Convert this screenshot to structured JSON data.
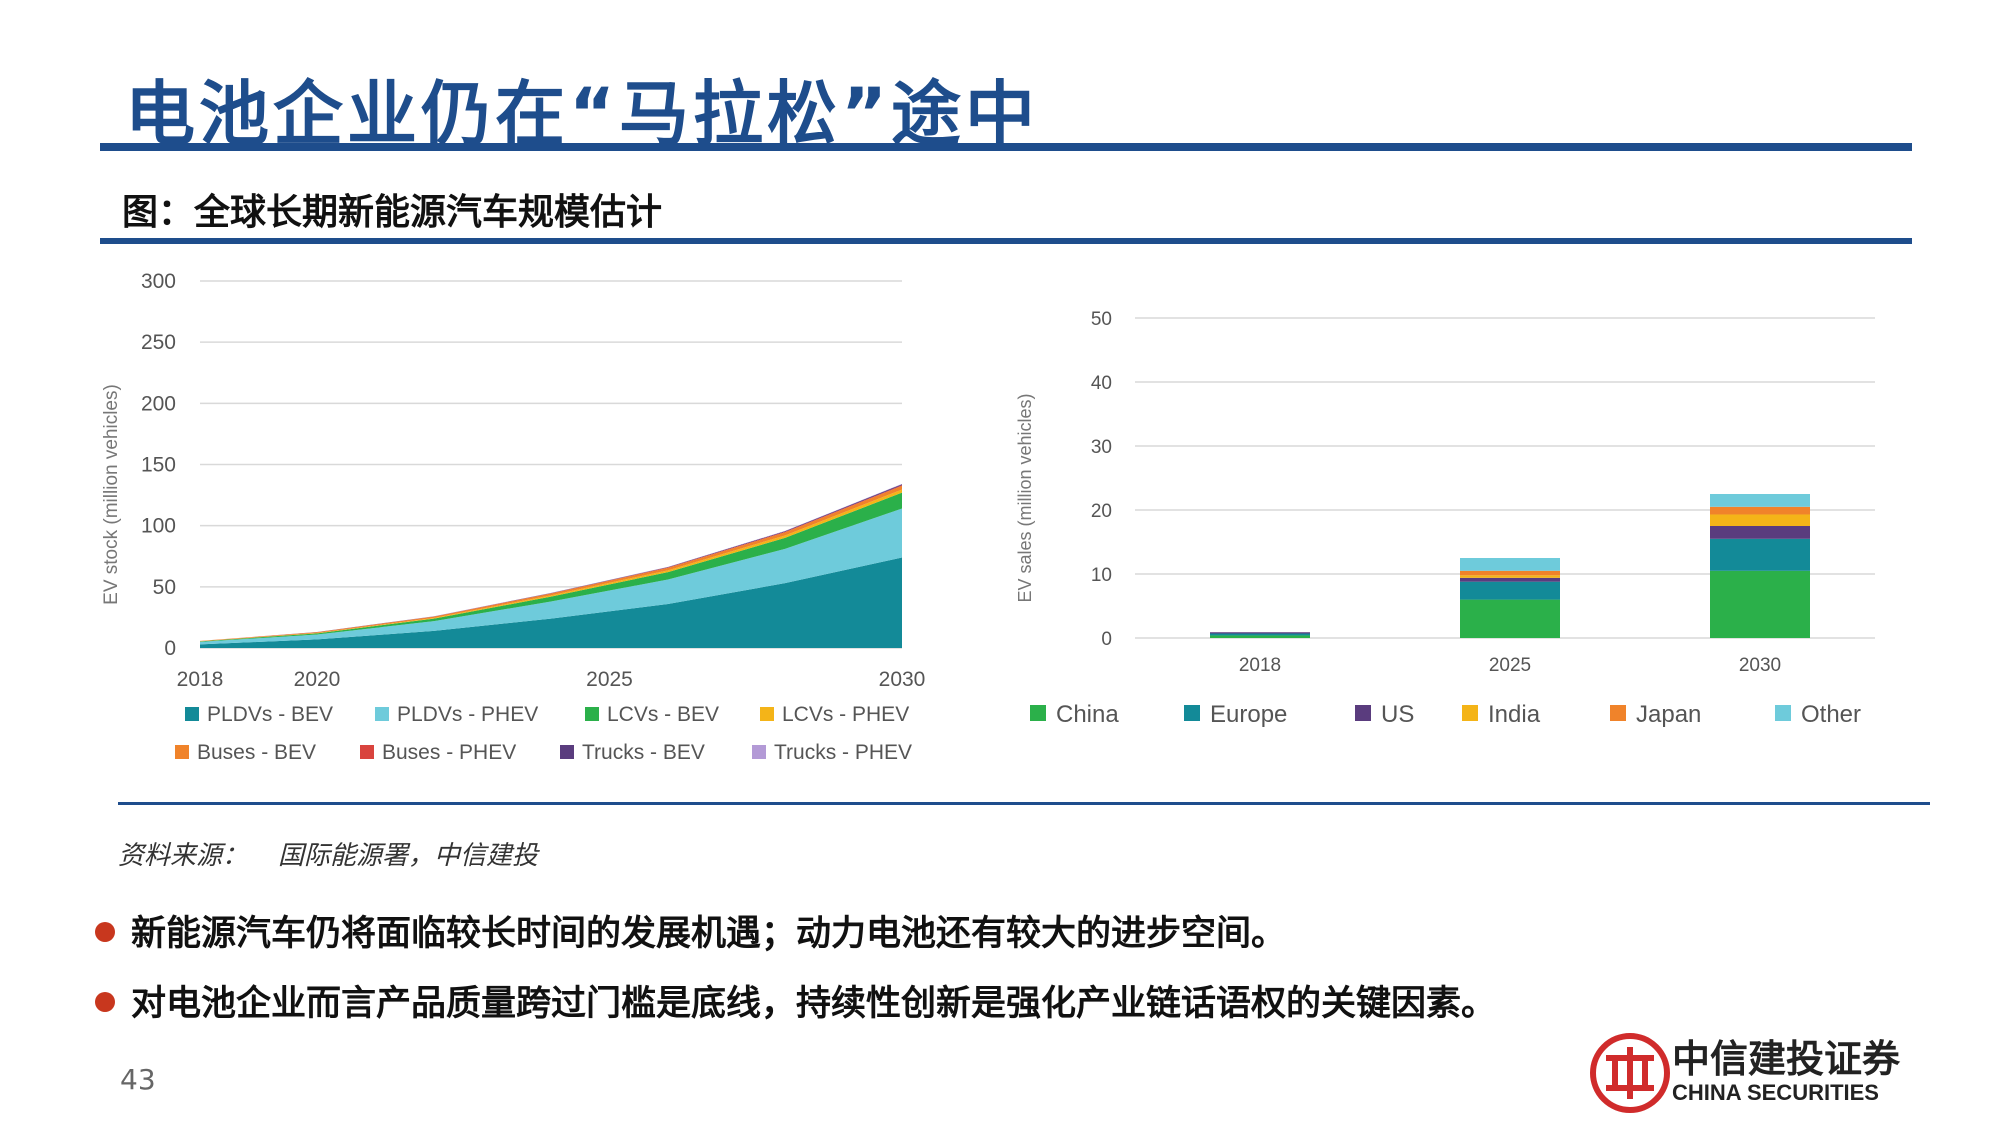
{
  "title": "电池企业仍在“马拉松”途中",
  "subtitle": "图：全球长期新能源汽车规模估计",
  "source": {
    "label": "资料来源：",
    "text": "国际能源署，中信建投"
  },
  "bullets": [
    "新能源汽车仍将面临较长时间的发展机遇；动力电池还有较大的进步空间。",
    "对电池企业而言产品质量跨过门槛是底线，持续性创新是强化产业链话语权的关键因素。"
  ],
  "page_number": "43",
  "logo": {
    "cn": "中信建投证券",
    "en": "CHINA SECURITIES"
  },
  "chart_data": [
    {
      "type": "area",
      "stacked": true,
      "ylabel": "EV stock (million vehicles)",
      "ylim": [
        0,
        300
      ],
      "yticks": [
        0,
        50,
        100,
        150,
        200,
        250,
        300
      ],
      "xticks": [
        2018,
        2020,
        2025,
        2030
      ],
      "x": [
        2018,
        2020,
        2022,
        2024,
        2026,
        2028,
        2030
      ],
      "grid": true,
      "legend_position": "bottom",
      "series": [
        {
          "name": "PLDVs - BEV",
          "color": "#138a98",
          "values": [
            3,
            7,
            14,
            24,
            36,
            53,
            74
          ]
        },
        {
          "name": "PLDVs - PHEV",
          "color": "#6ecbdb",
          "values": [
            2,
            4,
            8,
            14,
            20,
            28,
            40
          ]
        },
        {
          "name": "LCVs - BEV",
          "color": "#2bb04a",
          "values": [
            0.4,
            1,
            2,
            4,
            6,
            9,
            13
          ]
        },
        {
          "name": "LCVs - PHEV",
          "color": "#f4b418",
          "values": [
            0.1,
            0.3,
            0.6,
            1,
            1.5,
            2,
            2.5
          ]
        },
        {
          "name": "Buses - BEV",
          "color": "#f0832a",
          "values": [
            0.3,
            0.6,
            1,
            1.5,
            2,
            2.5,
            3
          ]
        },
        {
          "name": "Buses - PHEV",
          "color": "#d9443e",
          "values": [
            0.05,
            0.1,
            0.2,
            0.3,
            0.4,
            0.5,
            0.6
          ]
        },
        {
          "name": "Trucks - BEV",
          "color": "#5a3c7e",
          "values": [
            0,
            0.05,
            0.1,
            0.2,
            0.3,
            0.5,
            0.8
          ]
        },
        {
          "name": "Trucks - PHEV",
          "color": "#b39ad6",
          "values": [
            0,
            0.02,
            0.05,
            0.1,
            0.15,
            0.2,
            0.3
          ]
        }
      ]
    },
    {
      "type": "bar",
      "stacked": true,
      "ylabel": "EV sales (million vehicles)",
      "ylim": [
        0,
        50
      ],
      "yticks": [
        0,
        10,
        20,
        30,
        40,
        50
      ],
      "categories": [
        "2018",
        "2025",
        "2030"
      ],
      "grid": true,
      "legend_position": "bottom",
      "series": [
        {
          "name": "China",
          "color": "#2bb04a",
          "values": [
            0.4,
            6,
            10.5
          ]
        },
        {
          "name": "Europe",
          "color": "#138a98",
          "values": [
            0.3,
            2.8,
            5
          ]
        },
        {
          "name": "US",
          "color": "#5a3c7e",
          "values": [
            0.2,
            0.6,
            2
          ]
        },
        {
          "name": "India",
          "color": "#f4b418",
          "values": [
            0,
            0.4,
            1.8
          ]
        },
        {
          "name": "Japan",
          "color": "#f0832a",
          "values": [
            0,
            0.7,
            1.2
          ]
        },
        {
          "name": "Other",
          "color": "#6ecbdb",
          "values": [
            0,
            2,
            2
          ]
        }
      ]
    }
  ]
}
